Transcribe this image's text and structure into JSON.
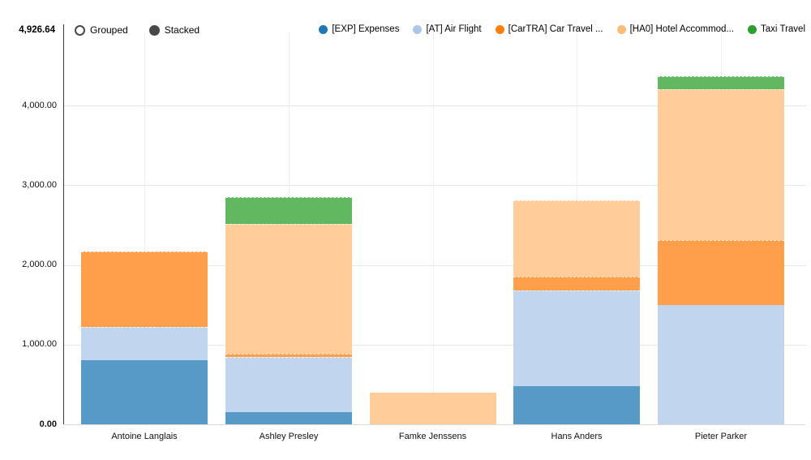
{
  "header": {
    "max_label": "4,926.64",
    "toggles": [
      {
        "label": "Grouped",
        "selected": false
      },
      {
        "label": "Stacked",
        "selected": true
      }
    ]
  },
  "legend": [
    {
      "label": "[EXP] Expenses",
      "color": "#1f77b4"
    },
    {
      "label": "[AT] Air Flight",
      "color": "#aec7e8"
    },
    {
      "label": "[CarTRA] Car Travel ...",
      "color": "#ff7f0e"
    },
    {
      "label": "[HA0] Hotel Accommod...",
      "color": "#ffbb78"
    },
    {
      "label": "Taxi Travel",
      "color": "#2ca02c"
    }
  ],
  "chart_data": {
    "type": "bar",
    "stacked": true,
    "title": "",
    "xlabel": "",
    "ylabel": "",
    "ylim": [
      0,
      4926.64
    ],
    "grid": true,
    "legend_position": "top-right",
    "categories": [
      "Antoine Langlais",
      "Ashley Presley",
      "Famke Jenssens",
      "Hans Anders",
      "Pieter Parker"
    ],
    "series": [
      {
        "name": "[EXP] Expenses",
        "color": "#1f77b4",
        "bar_color": "#5799c7",
        "values": [
          805,
          150,
          0,
          480,
          0
        ]
      },
      {
        "name": "[AT] Air Flight",
        "color": "#aec7e8",
        "bar_color": "#c2d5ee",
        "values": [
          415,
          700,
          0,
          1195,
          1500
        ]
      },
      {
        "name": "[CarTRA] Car Travel ...",
        "color": "#ff7f0e",
        "bar_color": "#ff9f4a",
        "values": [
          950,
          40,
          0,
          180,
          815
        ]
      },
      {
        "name": "[HA0] Hotel Accommod...",
        "color": "#ffbb78",
        "bar_color": "#ffcc9a",
        "values": [
          0,
          1620,
          400,
          950,
          1885
        ]
      },
      {
        "name": "Taxi Travel",
        "color": "#2ca02c",
        "bar_color": "#61b861",
        "values": [
          0,
          340,
          0,
          0,
          170
        ]
      }
    ],
    "totals": [
      2170,
      2850,
      400,
      2805,
      4370
    ],
    "yticks": [
      {
        "value": 0,
        "label": "0.00",
        "bold": true
      },
      {
        "value": 1000,
        "label": "1,000.00",
        "bold": false
      },
      {
        "value": 2000,
        "label": "2,000.00",
        "bold": false
      },
      {
        "value": 3000,
        "label": "3,000.00",
        "bold": false
      },
      {
        "value": 4000,
        "label": "4,000.00",
        "bold": false
      }
    ],
    "ymax_label": "4,926.64"
  }
}
